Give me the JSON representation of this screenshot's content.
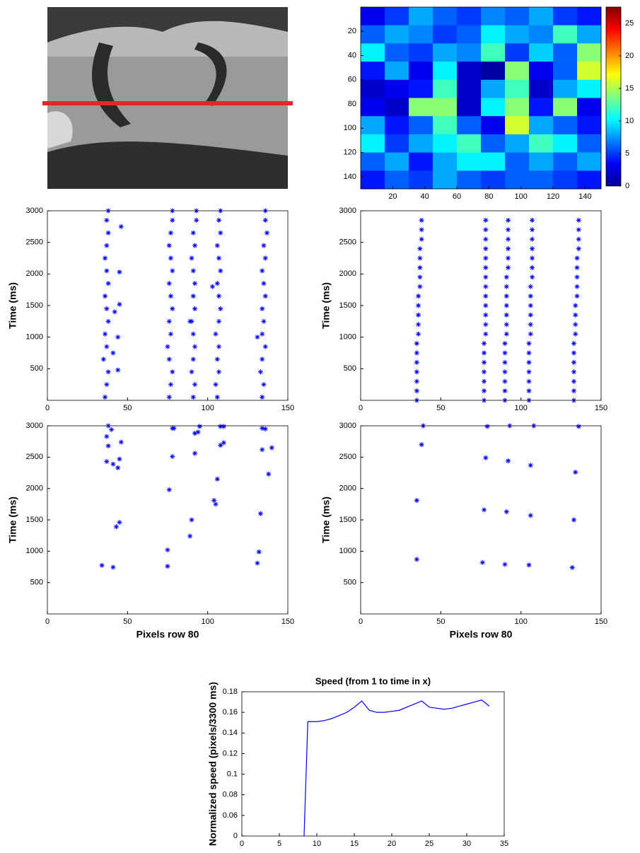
{
  "chart_data": [
    {
      "type": "heatmap",
      "colormap": "jet",
      "z": [
        [
          3,
          5,
          8,
          6,
          5,
          7,
          6,
          8,
          5,
          4
        ],
        [
          6,
          8,
          7,
          5,
          6,
          10,
          8,
          7,
          12,
          8
        ],
        [
          10,
          6,
          5,
          8,
          7,
          12,
          5,
          9,
          6,
          14
        ],
        [
          4,
          8,
          3,
          10,
          2,
          1,
          14,
          3,
          6,
          16
        ],
        [
          2,
          3,
          4,
          12,
          2,
          8,
          12,
          2,
          8,
          10
        ],
        [
          3,
          2,
          14,
          14,
          2,
          10,
          14,
          4,
          14,
          3
        ],
        [
          8,
          4,
          6,
          12,
          6,
          3,
          16,
          8,
          6,
          4
        ],
        [
          10,
          5,
          8,
          10,
          12,
          6,
          8,
          12,
          10,
          6
        ],
        [
          6,
          8,
          4,
          8,
          10,
          10,
          6,
          8,
          6,
          8
        ],
        [
          4,
          6,
          5,
          8,
          6,
          5,
          6,
          6,
          5,
          4
        ]
      ],
      "xlim": [
        0,
        150
      ],
      "ylim": [
        0,
        150
      ],
      "y_reversed": true,
      "xticks": [
        20,
        40,
        60,
        80,
        100,
        120,
        140
      ],
      "yticks": [
        20,
        40,
        60,
        80,
        100,
        120,
        140
      ],
      "clim": [
        0,
        27.5
      ],
      "cticks": [
        0,
        5,
        10,
        15,
        20,
        25
      ]
    },
    {
      "type": "scatter",
      "color": "#0000ff",
      "ylabel": "Time (ms)",
      "xlim": [
        0,
        150
      ],
      "ylim": [
        0,
        3000
      ],
      "xticks": [
        0,
        50,
        100,
        150
      ],
      "yticks": [
        500,
        1000,
        1500,
        2000,
        2500,
        3000
      ],
      "x": [
        36,
        37,
        38,
        35,
        37,
        36,
        38,
        37,
        36,
        38,
        37,
        36,
        37,
        38,
        37,
        38,
        76,
        77,
        78,
        76,
        75,
        77,
        76,
        78,
        77,
        76,
        78,
        77,
        76,
        77,
        78,
        78,
        91,
        92,
        90,
        91,
        92,
        91,
        90,
        92,
        91,
        92,
        91,
        90,
        92,
        91,
        93,
        93,
        106,
        105,
        107,
        106,
        107,
        105,
        107,
        108,
        107,
        106,
        108,
        107,
        106,
        108,
        107,
        108,
        134,
        135,
        133,
        134,
        136,
        134,
        135,
        134,
        136,
        135,
        134,
        136,
        135,
        137,
        136,
        136,
        46,
        45,
        45,
        44,
        41,
        44,
        42,
        103,
        89,
        131
      ],
      "y": [
        50,
        250,
        450,
        650,
        850,
        1050,
        1250,
        1450,
        1650,
        1850,
        2050,
        2250,
        2450,
        2650,
        2850,
        3000,
        50,
        250,
        450,
        650,
        850,
        1050,
        1250,
        1450,
        1650,
        1850,
        2050,
        2250,
        2450,
        2650,
        2850,
        3000,
        50,
        250,
        450,
        650,
        850,
        1050,
        1250,
        1450,
        1650,
        1850,
        2050,
        2250,
        2450,
        2650,
        2850,
        3000,
        50,
        250,
        450,
        650,
        850,
        1050,
        1250,
        1450,
        1650,
        1850,
        2050,
        2250,
        2450,
        2650,
        2850,
        3000,
        50,
        250,
        450,
        650,
        850,
        1050,
        1250,
        1450,
        1650,
        1850,
        2050,
        2250,
        2450,
        2650,
        2850,
        3000,
        2750,
        2030,
        1520,
        1000,
        750,
        480,
        1400,
        1800,
        1250,
        1000
      ]
    },
    {
      "type": "scatter",
      "color": "#0000ff",
      "ylabel": "Time (ms)",
      "xlim": [
        0,
        150
      ],
      "ylim": [
        0,
        3000
      ],
      "xticks": [
        0,
        50,
        100,
        150
      ],
      "yticks": [
        500,
        1000,
        1500,
        2000,
        2500,
        3000
      ],
      "x": [
        35,
        35,
        35,
        35,
        35,
        35,
        35,
        36,
        36,
        36,
        36,
        36,
        37,
        37,
        37,
        37,
        37,
        38,
        38,
        38,
        77,
        77,
        77,
        77,
        77,
        77,
        77,
        78,
        78,
        78,
        78,
        78,
        78,
        78,
        78,
        78,
        78,
        78,
        78,
        78,
        90,
        90,
        90,
        90,
        90,
        90,
        90,
        91,
        91,
        91,
        91,
        91,
        91,
        91,
        92,
        92,
        92,
        92,
        92,
        92,
        105,
        105,
        105,
        105,
        105,
        105,
        105,
        106,
        106,
        106,
        106,
        106,
        106,
        107,
        107,
        107,
        107,
        107,
        107,
        107,
        133,
        133,
        133,
        133,
        133,
        133,
        133,
        134,
        134,
        134,
        134,
        135,
        135,
        135,
        135,
        135,
        136,
        136,
        136,
        136
      ],
      "y": [
        0,
        150,
        300,
        450,
        600,
        750,
        900,
        1050,
        1200,
        1350,
        1500,
        1650,
        1800,
        1950,
        2100,
        2250,
        2400,
        2550,
        2700,
        2850,
        0,
        150,
        300,
        450,
        600,
        750,
        900,
        1050,
        1200,
        1350,
        1500,
        1650,
        1800,
        1950,
        2100,
        2250,
        2400,
        2550,
        2700,
        2850,
        0,
        150,
        300,
        450,
        600,
        750,
        900,
        1050,
        1200,
        1350,
        1500,
        1650,
        1800,
        1950,
        2100,
        2250,
        2400,
        2550,
        2700,
        2850,
        0,
        150,
        300,
        450,
        600,
        750,
        900,
        1050,
        1200,
        1350,
        1500,
        1650,
        1800,
        1950,
        2100,
        2250,
        2400,
        2550,
        2700,
        2850,
        0,
        150,
        300,
        450,
        600,
        750,
        900,
        1050,
        1200,
        1350,
        1500,
        1650,
        1800,
        1950,
        2100,
        2250,
        2400,
        2550,
        2700,
        2850
      ]
    },
    {
      "type": "scatter",
      "color": "#0000ff",
      "ylabel": "Time (ms)",
      "xlabel": "Pixels row 80",
      "xlim": [
        0,
        150
      ],
      "ylim": [
        0,
        3000
      ],
      "xticks": [
        0,
        50,
        100,
        150
      ],
      "yticks": [
        500,
        1000,
        1500,
        2000,
        2500,
        3000
      ],
      "x": [
        34,
        41,
        37,
        37,
        38,
        38,
        40,
        41,
        44,
        45,
        46,
        43,
        45,
        75,
        75,
        76,
        78,
        78,
        79,
        89,
        90,
        92,
        92,
        94,
        95,
        104,
        105,
        106,
        108,
        110,
        108,
        110,
        131,
        132,
        133,
        134,
        134,
        136,
        138,
        140
      ],
      "y": [
        775,
        745,
        2430,
        2830,
        2680,
        3000,
        2940,
        2390,
        2330,
        2470,
        2740,
        1390,
        1460,
        760,
        1020,
        1980,
        2510,
        2960,
        2960,
        1240,
        1500,
        2560,
        2880,
        2900,
        2990,
        1810,
        1750,
        2150,
        2690,
        2730,
        2990,
        2990,
        810,
        990,
        1600,
        2620,
        2960,
        2950,
        2230,
        2650
      ]
    },
    {
      "type": "scatter",
      "color": "#0000ff",
      "ylabel": "Time (ms)",
      "xlabel": "Pixels row 80",
      "xlim": [
        0,
        150
      ],
      "ylim": [
        0,
        3000
      ],
      "xticks": [
        0,
        50,
        100,
        150
      ],
      "yticks": [
        500,
        1000,
        1500,
        2000,
        2500,
        3000
      ],
      "x": [
        35,
        38,
        39,
        35,
        76,
        77,
        78,
        79,
        90,
        91,
        92,
        93,
        105,
        106,
        106,
        108,
        132,
        133,
        134,
        136
      ],
      "y": [
        870,
        2700,
        3000,
        1810,
        820,
        1660,
        2490,
        2990,
        790,
        1630,
        2440,
        3000,
        780,
        1570,
        2370,
        3000,
        740,
        1500,
        2260,
        2990
      ]
    },
    {
      "type": "line",
      "color": "#0000ff",
      "title": "Speed (from 1 to time in x)",
      "ylabel": "Normalized speed (pixels/3300 ms)",
      "xlim": [
        0,
        35
      ],
      "ylim": [
        0.04,
        0.18
      ],
      "xticks": [
        0,
        5,
        10,
        15,
        20,
        25,
        30,
        35
      ],
      "yticks": [
        {
          "value": 0.04,
          "label": "0"
        },
        0.06,
        0.08,
        0.1,
        0.12,
        0.14,
        0.16,
        0.18
      ],
      "x": [
        8.3,
        8.8,
        10,
        11,
        12,
        13,
        14,
        15,
        16,
        17,
        18,
        19,
        20,
        21,
        22,
        23,
        24,
        25,
        26,
        27,
        28,
        29,
        30,
        31,
        32,
        33
      ],
      "values": [
        0.04,
        0.151,
        0.151,
        0.152,
        0.154,
        0.157,
        0.16,
        0.165,
        0.171,
        0.162,
        0.16,
        0.16,
        0.161,
        0.162,
        0.165,
        0.168,
        0.171,
        0.165,
        0.164,
        0.163,
        0.164,
        0.166,
        0.168,
        0.17,
        0.172,
        0.166
      ]
    }
  ]
}
